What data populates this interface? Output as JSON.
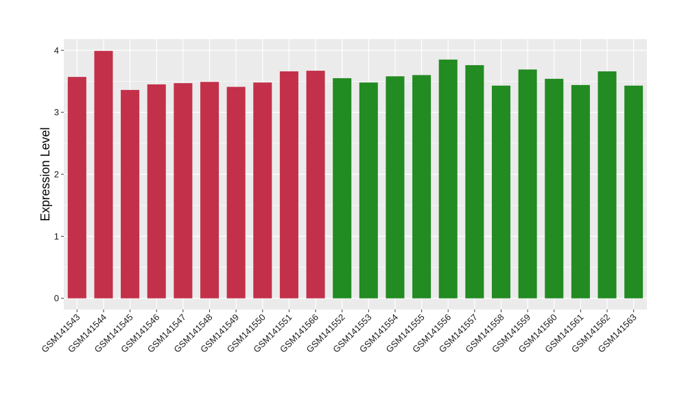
{
  "chart_data": {
    "type": "bar",
    "ylabel": "Expression Level",
    "xlabel": "",
    "ylim": [
      -0.18,
      4.18
    ],
    "yticks": [
      0,
      1,
      2,
      3,
      4
    ],
    "ytick_labels": [
      "0",
      "1",
      "2",
      "3",
      "4"
    ],
    "grid": true,
    "colors": {
      "panel": "#ebebeb",
      "grid": "#ffffff",
      "group1": "#c3304a",
      "group2": "#228b22"
    },
    "categories": [
      "GSM141543",
      "GSM141544",
      "GSM141545",
      "GSM141546",
      "GSM141547",
      "GSM141548",
      "GSM141549",
      "GSM141550",
      "GSM141551",
      "GSM141566",
      "GSM141552",
      "GSM141553",
      "GSM141554",
      "GSM141555",
      "GSM141556",
      "GSM141557",
      "GSM141558",
      "GSM141559",
      "GSM141560",
      "GSM141561",
      "GSM141562",
      "GSM141563"
    ],
    "values": [
      3.57,
      3.99,
      3.36,
      3.45,
      3.47,
      3.49,
      3.41,
      3.48,
      3.66,
      3.67,
      3.55,
      3.48,
      3.58,
      3.6,
      3.85,
      3.76,
      3.43,
      3.69,
      3.54,
      3.44,
      3.66,
      3.43
    ],
    "groups": [
      1,
      1,
      1,
      1,
      1,
      1,
      1,
      1,
      1,
      1,
      2,
      2,
      2,
      2,
      2,
      2,
      2,
      2,
      2,
      2,
      2,
      2
    ]
  }
}
